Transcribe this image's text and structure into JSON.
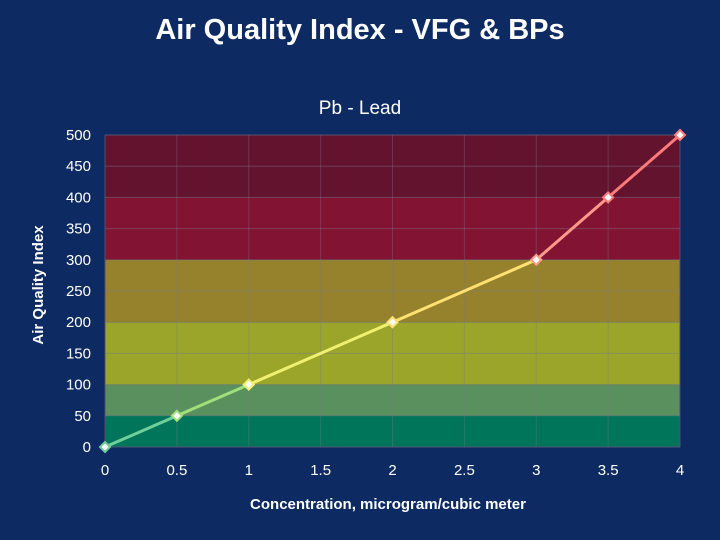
{
  "page": {
    "title": "Air Quality Index - VFG & BPs"
  },
  "chart_data": {
    "type": "line",
    "title": "Pb - Lead",
    "xlabel": "Concentration, microgram/cubic meter",
    "ylabel": "Air Quality Index",
    "xlim": [
      0,
      4
    ],
    "ylim": [
      0,
      500
    ],
    "x_ticks": [
      "0",
      "0.5",
      "1",
      "1.5",
      "2",
      "2.5",
      "3",
      "3.5",
      "4"
    ],
    "y_ticks": [
      "0",
      "50",
      "100",
      "150",
      "200",
      "250",
      "300",
      "350",
      "400",
      "450",
      "500"
    ],
    "series": [
      {
        "x": [
          0,
          0.5,
          1,
          2,
          3,
          3.5,
          4
        ],
        "y": [
          0,
          50,
          100,
          200,
          300,
          400,
          500
        ]
      }
    ],
    "bands": [
      {
        "from": 0,
        "to": 50,
        "color": "#00755a"
      },
      {
        "from": 50,
        "to": 100,
        "color": "#5a8f5e"
      },
      {
        "from": 100,
        "to": 200,
        "color": "#9aa52a"
      },
      {
        "from": 200,
        "to": 300,
        "color": "#96822d"
      },
      {
        "from": 300,
        "to": 400,
        "color": "#821333"
      },
      {
        "from": 400,
        "to": 500,
        "color": "#64132f"
      }
    ],
    "line_colors": [
      "#6fcf9a",
      "#9fe07a",
      "#f0f070",
      "#ffe070",
      "#ff9a8a",
      "#ff7a7a"
    ]
  }
}
